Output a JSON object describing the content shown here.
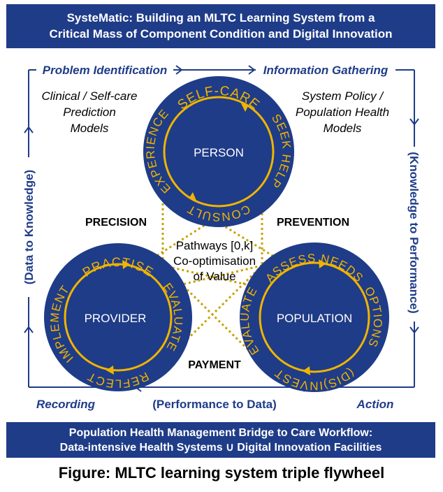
{
  "top_banner": {
    "line1": "SysteMatic: Building  an MLTC Learning System from a",
    "line2": "Critical Mass of Component Condition and Digital Innovation"
  },
  "stages": {
    "top_left": "Problem Identification",
    "top_right": "Information Gathering",
    "bottom_left": "Recording",
    "bottom_right": "Action",
    "bottom_center": "(Performance to Data)",
    "left": "(Data to Knowledge)",
    "right": "(Knowledge to Performance)"
  },
  "models": {
    "left": [
      "Clinical / Self-care",
      "Prediction",
      "Models"
    ],
    "right": [
      "System Policy /",
      "Population Health",
      "Models"
    ]
  },
  "wheels": {
    "person": {
      "label": "PERSON",
      "top": "SELF-CARE",
      "left": "EXPERIENCE",
      "right": "SEEK HELP",
      "bottom": "CONSULT"
    },
    "provider": {
      "label": "PROVIDER",
      "top": "PRACTISE",
      "left": "IMPLEMENT",
      "right": "EVALUATE",
      "bottom": "REFLECT"
    },
    "population": {
      "label": "POPULATION",
      "top": "ASSESS NEEDS",
      "left": "EVALUATE",
      "right": "OPTIONS",
      "bottom": "(DIS)INVEST"
    }
  },
  "links": {
    "precision": "PRECISION",
    "prevention": "PREVENTION",
    "payment": "PAYMENT"
  },
  "center": [
    "Pathways [0,k]",
    "Co-optimisation",
    "of Value"
  ],
  "bottom_banner": {
    "line1": "Population Health Management Bridge to Care Workflow:",
    "line2": "Data-intensive Health Systems  ∪ Digital Innovation Facilities"
  },
  "caption": "Figure: MLTC learning system triple flywheel",
  "colors": {
    "navy": "#1f3c88",
    "gold": "#f0b400",
    "dotted": "#c8a000",
    "white": "#ffffff"
  }
}
